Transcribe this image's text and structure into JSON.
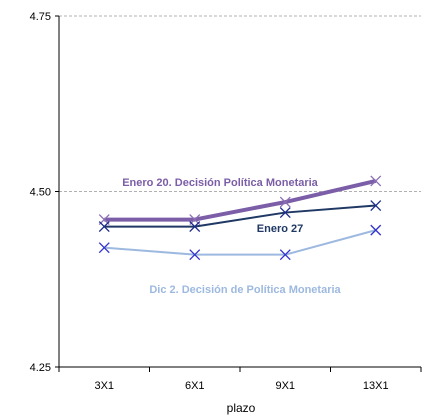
{
  "chart_data": {
    "type": "line",
    "xlabel": "plazo",
    "ylabel": "",
    "categories": [
      "3X1",
      "6X1",
      "9X1",
      "13X1"
    ],
    "ylim": [
      4.25,
      4.75
    ],
    "yticks": [
      "4.25",
      "4.50",
      "4.75"
    ],
    "grid": "horizontal dashed at 4.50 and 4.75",
    "legend": "none",
    "series": [
      {
        "name": "Enero 20. Decisión Política Monetaria",
        "values": [
          4.46,
          4.46,
          4.485,
          4.515
        ],
        "color": "#7b5ea7",
        "marker": "x"
      },
      {
        "name": "Enero 27",
        "values": [
          4.45,
          4.45,
          4.47,
          4.48
        ],
        "color": "#1f3864",
        "marker": "x"
      },
      {
        "name": "Dic 2. Decisión de Política Monetaria",
        "values": [
          4.42,
          4.41,
          4.41,
          4.445
        ],
        "color": "#9db9e0",
        "marker": "x"
      }
    ],
    "annotations": [
      {
        "text": "Enero 20. Decisión Política Monetaria",
        "color": "#7b5ea7"
      },
      {
        "text": "Enero 27",
        "color": "#1f3864"
      },
      {
        "text": "Dic 2. Decisión de Política Monetaria",
        "color": "#9db9e0"
      }
    ]
  }
}
